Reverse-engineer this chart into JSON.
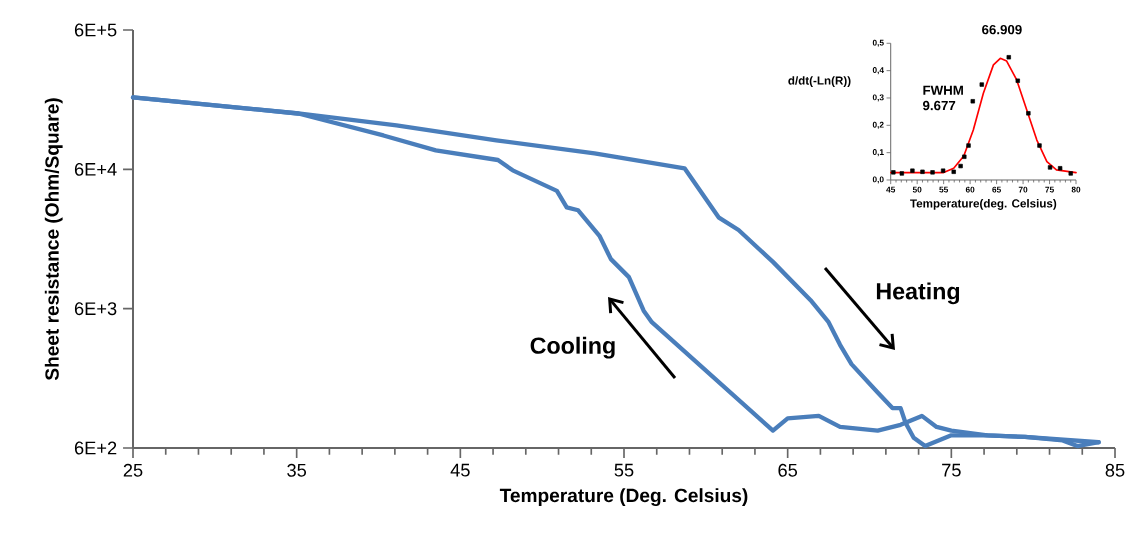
{
  "chart_data": [
    {
      "type": "line",
      "xlabel": "Temperature (Deg. Celsius)",
      "ylabel": "Sheet resistance (Ohm/Square)",
      "log": "y",
      "marker": "none",
      "line_style": "solid",
      "xlim": [
        25,
        85
      ],
      "xticks": [
        25,
        35,
        45,
        55,
        65,
        75,
        85
      ],
      "ylim": [
        600,
        600000
      ],
      "yticks": [
        {
          "value": 600,
          "label": "6E+2"
        },
        {
          "value": 6000,
          "label": "6E+3"
        },
        {
          "value": 60000,
          "label": "6E+4"
        },
        {
          "value": 600000,
          "label": "6E+5"
        }
      ],
      "series": [
        {
          "color": "#4a7ebb",
          "x": [
            25.0,
            35.1,
            41.1,
            47.2,
            53.2,
            58.7,
            60.8,
            62.0,
            64.1,
            66.4,
            67.5,
            68.2,
            68.9,
            70.5,
            71.4,
            71.9,
            72.2,
            72.7,
            73.4,
            75.0,
            77.2,
            79.5,
            81.8,
            82.7,
            84.0
          ],
          "values": [
            197000,
            151000,
            124000,
            97000,
            78000,
            61000,
            27000,
            22000,
            13000,
            6900,
            4800,
            3300,
            2400,
            1500,
            1160,
            1160,
            910,
            710,
            620,
            740,
            740,
            720,
            680,
            620,
            660
          ]
        },
        {
          "color": "#4a7ebb",
          "x": [
            25.0,
            35.1,
            40.3,
            43.5,
            47.3,
            48.2,
            50.9,
            51.5,
            52.2,
            53.5,
            54.2,
            55.3,
            56.2,
            56.7,
            64.1,
            65.0,
            66.9,
            68.2,
            70.5,
            71.9,
            73.2,
            74.1,
            75.0,
            77.2,
            79.5,
            84.0
          ],
          "values": [
            197000,
            151000,
            105000,
            82000,
            70000,
            59000,
            42000,
            32000,
            30500,
            20000,
            13600,
            10100,
            5800,
            4800,
            800,
            980,
            1020,
            850,
            800,
            880,
            1020,
            850,
            800,
            740,
            720,
            660
          ]
        }
      ],
      "annotations": [
        "Heating",
        "Cooling"
      ]
    },
    {
      "type": "scatter",
      "xlabel": "Temperature(deg. Celsius)",
      "ylabel": "d/dt(-Ln(R))",
      "xlim": [
        45,
        80
      ],
      "xticks": [
        45,
        50,
        55,
        60,
        65,
        70,
        75,
        80
      ],
      "ylim": [
        0,
        0.5
      ],
      "yticks": [
        {
          "value": 0,
          "label": "0,0"
        },
        {
          "value": 0.1,
          "label": "0,1"
        },
        {
          "value": 0.2,
          "label": "0,2"
        },
        {
          "value": 0.3,
          "label": "0,3"
        },
        {
          "value": 0.4,
          "label": "0,4"
        },
        {
          "value": 0.5,
          "label": "0,5"
        }
      ],
      "series": [
        {
          "type": "scatter",
          "marker": "square",
          "color": "#000000",
          "x": [
            45.5,
            47.1,
            49.1,
            51.0,
            52.9,
            54.9,
            56.9,
            58.2,
            58.9,
            59.7,
            60.5,
            62.2,
            67.3,
            69.0,
            71.0,
            73.1,
            75.1,
            77.0,
            79.0
          ],
          "values": [
            0.028,
            0.024,
            0.034,
            0.03,
            0.028,
            0.034,
            0.03,
            0.051,
            0.085,
            0.126,
            0.288,
            0.349,
            0.449,
            0.363,
            0.244,
            0.126,
            0.046,
            0.043,
            0.024
          ]
        },
        {
          "type": "line",
          "marker": "none",
          "color": "#ff0000",
          "x": [
            45,
            55,
            56.9,
            58.8,
            60.6,
            62.5,
            64.4,
            65.7,
            66.9,
            68.8,
            70.7,
            72.6,
            74.5,
            76.3,
            80
          ],
          "values": [
            0.027,
            0.027,
            0.043,
            0.088,
            0.183,
            0.317,
            0.421,
            0.445,
            0.435,
            0.366,
            0.256,
            0.146,
            0.067,
            0.037,
            0.027
          ]
        }
      ],
      "annotations": [
        "66.909",
        "FWHM 9.677"
      ]
    }
  ]
}
